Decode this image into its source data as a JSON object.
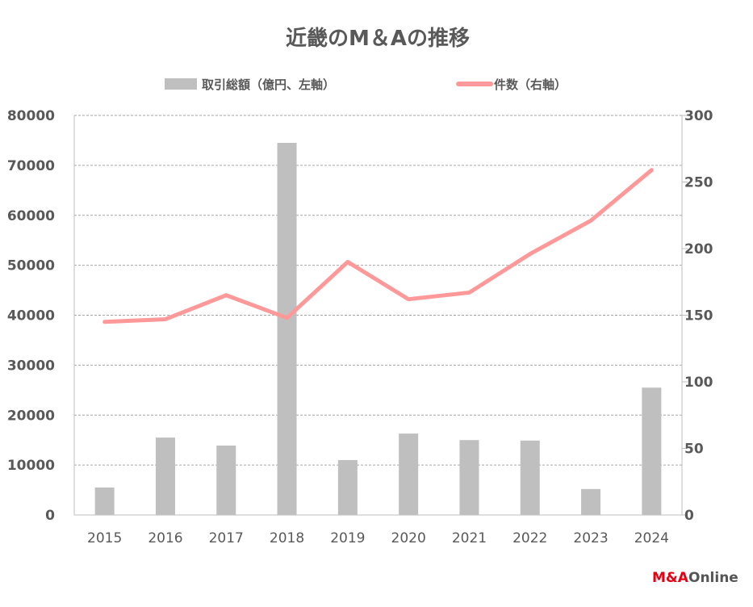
{
  "chart_data": {
    "type": "bar+line",
    "title": "近畿のM＆Aの推移",
    "categories": [
      "2015",
      "2016",
      "2017",
      "2018",
      "2019",
      "2020",
      "2021",
      "2022",
      "2023",
      "2024"
    ],
    "series": [
      {
        "name": "取引総額（億円、左軸）",
        "type": "bar",
        "axis": "left",
        "color": "#bfbfbf",
        "values": [
          5500,
          15500,
          13900,
          74500,
          11000,
          16300,
          15000,
          14900,
          5200,
          25500
        ]
      },
      {
        "name": "件数（右軸）",
        "type": "line",
        "axis": "right",
        "color": "#ff9999",
        "values": [
          145,
          147,
          165,
          148,
          190,
          162,
          167,
          196,
          221,
          259
        ]
      }
    ],
    "ylim_left": [
      0,
      80000
    ],
    "yticks_left": [
      "0",
      "10000",
      "20000",
      "30000",
      "40000",
      "50000",
      "60000",
      "70000",
      "80000"
    ],
    "ylim_right": [
      0,
      300
    ],
    "yticks_right": [
      "0",
      "50",
      "100",
      "150",
      "200",
      "250",
      "300"
    ],
    "grid": true,
    "legend": "top"
  },
  "logo": {
    "part1": "M&A",
    "part2": "Online"
  }
}
